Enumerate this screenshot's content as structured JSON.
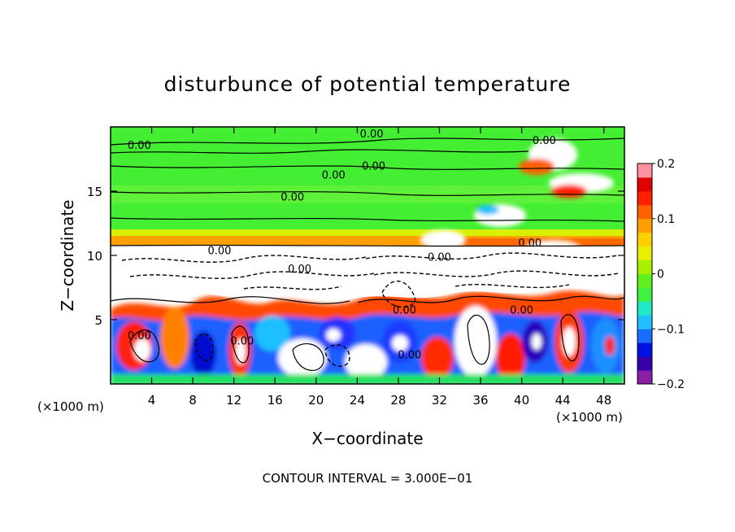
{
  "chart_data": {
    "type": "heatmap",
    "title": "disturbunce of potential temperature",
    "xlabel": "X−coordinate",
    "ylabel": "Z−coordinate",
    "x_unit": "(×1000 m)",
    "y_unit": "(×1000 m)",
    "xlim": [
      0,
      50
    ],
    "ylim": [
      0,
      20
    ],
    "x_ticks": [
      4,
      8,
      12,
      16,
      20,
      24,
      28,
      32,
      36,
      40,
      44,
      48
    ],
    "y_ticks": [
      5,
      10,
      15
    ],
    "colorbar": {
      "range": [
        -0.2,
        0.2
      ],
      "tick_values": [
        0.2,
        0.1,
        0,
        -0.1,
        -0.2
      ],
      "tick_labels": [
        "0.2",
        "0.1",
        "0",
        "−0.1",
        "−0.2"
      ],
      "colors": [
        "#8a1fa6",
        "#3a00a8",
        "#0010e0",
        "#1a6cff",
        "#1ec0ff",
        "#20e8c8",
        "#40f040",
        "#60f020",
        "#a8f000",
        "#e8f000",
        "#ffd000",
        "#ffa000",
        "#ff6000",
        "#ff2000",
        "#e00000",
        "#ff90a0"
      ]
    },
    "contour_labels": [
      {
        "text": "0.00",
        "x": 2.8,
        "z": 18.6
      },
      {
        "text": "0.00",
        "x": 25.4,
        "z": 19.5
      },
      {
        "text": "0.00",
        "x": 42.2,
        "z": 19.0
      },
      {
        "text": "0.00",
        "x": 25.6,
        "z": 17.0
      },
      {
        "text": "0.00",
        "x": 21.7,
        "z": 16.3
      },
      {
        "text": "0.00",
        "x": 17.7,
        "z": 14.6
      },
      {
        "text": "0.00",
        "x": 40.8,
        "z": 11.0
      },
      {
        "text": "0.00",
        "x": 10.6,
        "z": 10.4
      },
      {
        "text": "0.00",
        "x": 32.0,
        "z": 9.9
      },
      {
        "text": "0.00",
        "x": 18.4,
        "z": 9.0
      },
      {
        "text": "0.00",
        "x": 28.6,
        "z": 5.8
      },
      {
        "text": "0.00",
        "x": 40.0,
        "z": 5.8
      },
      {
        "text": "0.00",
        "x": 2.8,
        "z": 3.8
      },
      {
        "text": "0.00",
        "x": 12.8,
        "z": 3.4
      },
      {
        "text": "0.00",
        "x": 29.1,
        "z": 2.3
      }
    ],
    "footer": "CONTOUR INTERVAL = 3.000E−01"
  }
}
